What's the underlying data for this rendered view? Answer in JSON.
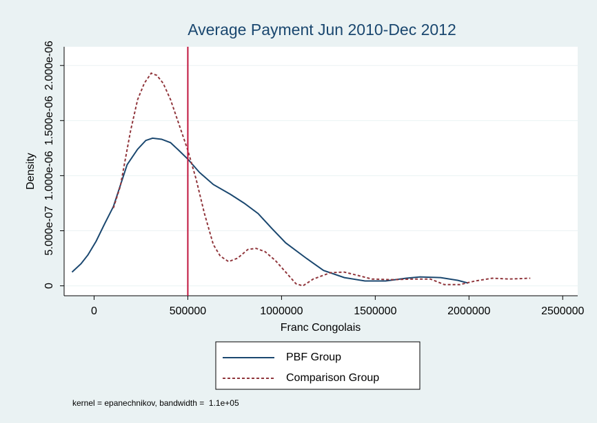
{
  "chart_data": {
    "type": "line",
    "title": "Average Payment Jun 2010-Dec 2012",
    "x_label": "Franc Congolais",
    "y_label": "Density",
    "note": "kernel = epanechnikov, bandwidth =  1.1e+05",
    "xlim": [
      -160000,
      2580000
    ],
    "ylim": [
      -9e-08,
      2.17e-06
    ],
    "xticks": [
      0,
      500000,
      1000000,
      1500000,
      2000000,
      2500000
    ],
    "yticks": [
      0,
      {
        "value": 5e-07,
        "label": "5.000e-07"
      },
      {
        "value": 1e-06,
        "label": "1.000e-06"
      },
      {
        "value": 1.5e-06,
        "label": "1.500e-06"
      },
      {
        "value": 2e-06,
        "label": "2.000e-06"
      }
    ],
    "grid": true,
    "xline": 500000,
    "xline_color": "#c0143c",
    "series": [
      {
        "name": "PBF Group",
        "color": "#1a476f",
        "dash": false,
        "x": [
          -117600,
          -70000,
          -33000,
          11000,
          55000,
          103000,
          176000,
          232000,
          276000,
          312000,
          360000,
          408000,
          452000,
          500000,
          562000,
          636000,
          728000,
          801000,
          875000,
          949000,
          1022000,
          1132000,
          1224000,
          1335000,
          1445000,
          1555000,
          1665000,
          1739000,
          1849000,
          1941000,
          1996000
        ],
        "values": [
          1.25e-07,
          2e-07,
          2.8e-07,
          4.06e-07,
          5.6e-07,
          7.2e-07,
          1.1e-06,
          1.24e-06,
          1.32e-06,
          1.34e-06,
          1.33e-06,
          1.3e-06,
          1.23e-06,
          1.15e-06,
          1.03e-06,
          9.2e-07,
          8.3e-07,
          7.5e-07,
          6.56e-07,
          5.2e-07,
          3.9e-07,
          2.5e-07,
          1.4e-07,
          7.5e-08,
          4.4e-08,
          4.4e-08,
          6.9e-08,
          8.1e-08,
          7.5e-08,
          5e-08,
          2.5e-08
        ]
      },
      {
        "name": "Comparison Group",
        "color": "#90353b",
        "dash": true,
        "x": [
          103000,
          140000,
          195000,
          232000,
          268000,
          305000,
          335000,
          368000,
          408000,
          452000,
          500000,
          544000,
          588000,
          636000,
          673000,
          717000,
          765000,
          820000,
          864000,
          912000,
          967000,
          1022000,
          1077000,
          1114000,
          1169000,
          1261000,
          1335000,
          1408000,
          1482000,
          1592000,
          1702000,
          1794000,
          1868000,
          1952000,
          2033000,
          2125000,
          2217000,
          2327000
        ],
        "values": [
          7.06e-07,
          9.06e-07,
          1.41e-06,
          1.69e-06,
          1.84e-06,
          1.93e-06,
          1.91e-06,
          1.84e-06,
          1.69e-06,
          1.47e-06,
          1.23e-06,
          9.7e-07,
          6.6e-07,
          3.75e-07,
          2.7e-07,
          2.2e-07,
          2.5e-07,
          3.3e-07,
          3.4e-07,
          3.1e-07,
          2.3e-07,
          1.25e-07,
          1.9e-08,
          0,
          6.2e-08,
          1.2e-07,
          1.25e-07,
          9.4e-08,
          6.2e-08,
          5.6e-08,
          6.2e-08,
          6.2e-08,
          1.2e-08,
          1.2e-08,
          4.4e-08,
          6.9e-08,
          6.2e-08,
          6.9e-08
        ]
      }
    ]
  }
}
